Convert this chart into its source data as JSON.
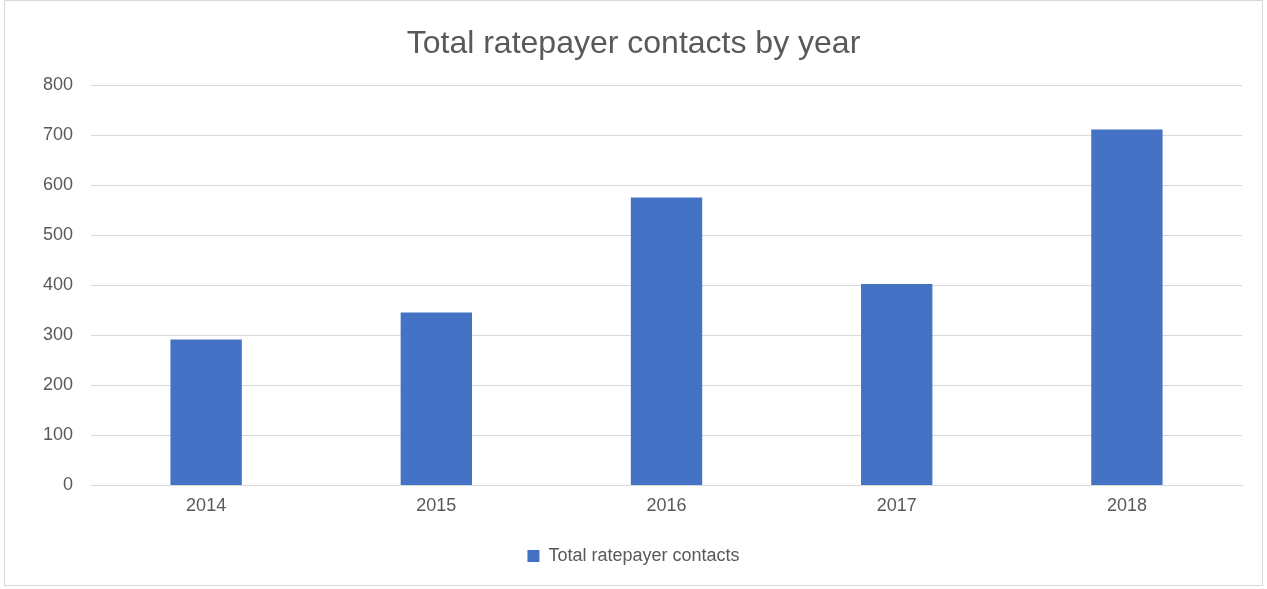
{
  "chart_data": {
    "type": "bar",
    "title": "Total ratepayer contacts by year",
    "categories": [
      "2014",
      "2015",
      "2016",
      "2017",
      "2018"
    ],
    "series": [
      {
        "name": "Total ratepayer contacts",
        "color": "#4472c4",
        "values": [
          292,
          346,
          576,
          403,
          712
        ]
      }
    ],
    "ylim": [
      0,
      800
    ],
    "yticks": [
      0,
      100,
      200,
      300,
      400,
      500,
      600,
      700,
      800
    ],
    "grid": "y",
    "legend": "bottom"
  }
}
